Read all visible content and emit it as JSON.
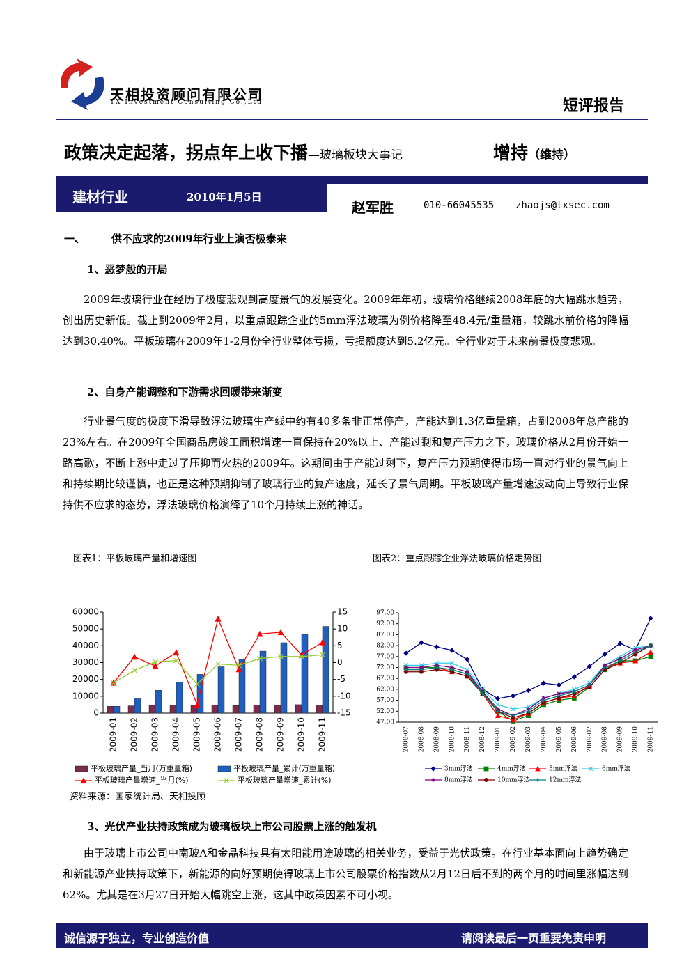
{
  "header": {
    "company": "天相投资顾问有限公司",
    "company_en": "TX Investment Consulting Co.,Ltd",
    "report_type": "短评报告"
  },
  "title": {
    "main": "政策决定起落，拐点年上收下播",
    "sub": "—玻璃板块大事记",
    "rating": "增持",
    "rating_note": "（维持）"
  },
  "band": {
    "industry": "建材行业",
    "date": "2010年1月5日",
    "analyst": "赵军胜",
    "phone": "010-66045535",
    "email": "zhaojs@txsec.com"
  },
  "section": {
    "number": "一、",
    "heading": "供不应求的2009年行业上演否极泰来"
  },
  "subsections": [
    {
      "heading": "1、恶梦般的开局",
      "paragraph": "2009年玻璃行业在经历了极度悲观到高度景气的发展变化。2009年年初，玻璃价格继续2008年底的大幅跳水趋势，创出历史新低。截止到2009年2月，以重点跟踪企业的5mm浮法玻璃为例价格降至48.4元/重量箱，较跳水前价格的降幅达到30.40%。平板玻璃在2009年1-2月份全行业整体亏损，亏损额度达到5.2亿元。全行业对于未来前景极度悲观。"
    },
    {
      "heading": "2、自身产能调整和下游需求回暖带来渐变",
      "paragraph": "行业景气度的极度下滑导致浮法玻璃生产线中约有40多条非正常停产，产能达到1.3亿重量箱，占到2008年总产能的23%左右。在2009年全国商品房竣工面积增速一直保持在20%以上、产能过剩和复产压力之下，玻璃价格从2月份开始一路高歌，不断上涨中走过了压抑而火热的2009年。这期间由于产能过剩下，复产压力预期使得市场一直对行业的景气向上和持续期比较谨慎，也正是这种预期抑制了玻璃行业的复产速度，延长了景气周期。平板玻璃产量增速波动向上导致行业保持供不应求的态势，浮法玻璃价格演绎了10个月持续上涨的神话。"
    },
    {
      "heading": "3、光伏产业扶持政策成为玻璃板块上市公司股票上涨的触发机",
      "paragraph": "由于玻璃上市公司中南玻A和金晶科技具有太阳能用途玻璃的相关业务，受益于光伏政策。在行业基本面向上趋势确定和新能源产业扶持政策下，新能源的向好预期使得玻璃上市公司股票价格指数从2月12日后不到的两个月的时间里涨幅达到62%。尤其是在3月27日开始大幅跳空上涨，这其中政策因素不可小视。"
    }
  ],
  "chart_data": [
    {
      "type": "combo",
      "title": "图表1：平板玻璃产量和增速图",
      "source": "资料来源：国家统计局、天相投顾",
      "categories": [
        "2009-01",
        "2009-02",
        "2009-03",
        "2009-04",
        "2009-05",
        "2009-06",
        "2009-07",
        "2009-08",
        "2009-09",
        "2009-10",
        "2009-11"
      ],
      "series": [
        {
          "name": "平板玻璃产量_当月(万重量箱)",
          "type": "bar",
          "color": "#7b2c4c",
          "values": [
            4000,
            4300,
            4600,
            4600,
            4400,
            4700,
            4500,
            4800,
            4800,
            5000,
            4800
          ]
        },
        {
          "name": "平板玻璃产量_累计(万重量箱)",
          "type": "bar",
          "color": "#1f5fbf",
          "values": [
            4000,
            8500,
            13500,
            18300,
            23000,
            27500,
            32000,
            36800,
            41800,
            46800,
            51500
          ]
        },
        {
          "name": "平板玻璃产量增速_当月(%)",
          "type": "line",
          "axis": "y2",
          "marker": "triangle",
          "color": "#ff0000",
          "values": [
            -6,
            1.7,
            -1,
            3,
            -12.5,
            13,
            -2,
            8.5,
            9,
            2.3,
            6
          ]
        },
        {
          "name": "平板玻璃产量增速_累计(%)",
          "type": "line",
          "axis": "y2",
          "marker": "x",
          "color": "#99cc33",
          "values": [
            -6,
            -2.3,
            0.2,
            0.6,
            -6.4,
            -0.4,
            -0.8,
            1.2,
            1.8,
            1.8,
            2.3
          ]
        }
      ],
      "ylim": [
        0,
        60000
      ],
      "yticks": [
        0,
        10000,
        20000,
        30000,
        40000,
        50000,
        60000
      ],
      "y2lim": [
        -15,
        15
      ],
      "y2ticks": [
        -15,
        -10,
        -5,
        0,
        5,
        10,
        15
      ]
    },
    {
      "type": "line",
      "title": "图表2：重点跟踪企业浮法玻璃价格走势图",
      "categories": [
        "2008-07",
        "2008-08",
        "2008-09",
        "2008-10",
        "2008-11",
        "2008-12",
        "2009-01",
        "2009-02",
        "2009-03",
        "2009-04",
        "2009-05",
        "2009-06",
        "2009-07",
        "2009-08",
        "2009-09",
        "2009-10",
        "2009-11"
      ],
      "series": [
        {
          "name": "3mm浮法",
          "marker": "diamond",
          "color": "#000080",
          "values": [
            78.5,
            83.3,
            81.4,
            79.8,
            75.7,
            62,
            57.8,
            59,
            61.5,
            64.8,
            64,
            67.7,
            72.5,
            78,
            83,
            80,
            94.5
          ]
        },
        {
          "name": "4mm浮法",
          "marker": "square",
          "color": "#008000",
          "values": [
            72,
            72,
            72,
            71,
            69,
            61,
            52,
            47.5,
            50,
            55,
            57,
            58,
            63,
            71,
            75,
            75,
            77
          ]
        },
        {
          "name": "5mm浮法",
          "marker": "triangle",
          "color": "#ff0000",
          "values": [
            71,
            71,
            72,
            70,
            68,
            60,
            50,
            48,
            51,
            56,
            58,
            59,
            64,
            72,
            74,
            75,
            79
          ]
        },
        {
          "name": "6mm浮法",
          "marker": "x",
          "color": "#33ccee",
          "values": [
            73,
            73,
            74,
            74,
            71,
            62,
            55,
            53,
            54,
            58,
            60,
            62,
            65,
            73,
            77,
            81,
            82
          ]
        },
        {
          "name": "8mm浮法",
          "marker": "star",
          "color": "#800080",
          "values": [
            72,
            72,
            73,
            72,
            70,
            61,
            53,
            50,
            53,
            58,
            60,
            61,
            64,
            73,
            76,
            80,
            82
          ]
        },
        {
          "name": "10mm浮法",
          "marker": "circle",
          "color": "#800000",
          "values": [
            70,
            70,
            71,
            70,
            68,
            60,
            52,
            49,
            51,
            56,
            58,
            60,
            63,
            71,
            74,
            78,
            82
          ]
        },
        {
          "name": "12mm浮法",
          "marker": "plus",
          "color": "#008080",
          "values": [
            71,
            71,
            72,
            71,
            69,
            60,
            52,
            50,
            52,
            57,
            59,
            61,
            64,
            72,
            75,
            79,
            82
          ]
        }
      ],
      "ylim": [
        47,
        97
      ],
      "yticks": [
        {
          "value": 47,
          "label": "47.00"
        },
        {
          "value": 52,
          "label": "52.00"
        },
        {
          "value": 57,
          "label": "57.00"
        },
        {
          "value": 62,
          "label": "62.00"
        },
        {
          "value": 67,
          "label": "67.00"
        },
        {
          "value": 72,
          "label": "72.00"
        },
        {
          "value": 77,
          "label": "77.00"
        },
        {
          "value": 82,
          "label": "82.00"
        },
        {
          "value": 87,
          "label": "87.00"
        },
        {
          "value": 92,
          "label": "92.00"
        },
        {
          "value": 97,
          "label": "97.00"
        }
      ]
    }
  ],
  "footer": {
    "left": "诚信源于独立，专业创造价值",
    "right": "请阅读最后一页重要免责申明"
  }
}
